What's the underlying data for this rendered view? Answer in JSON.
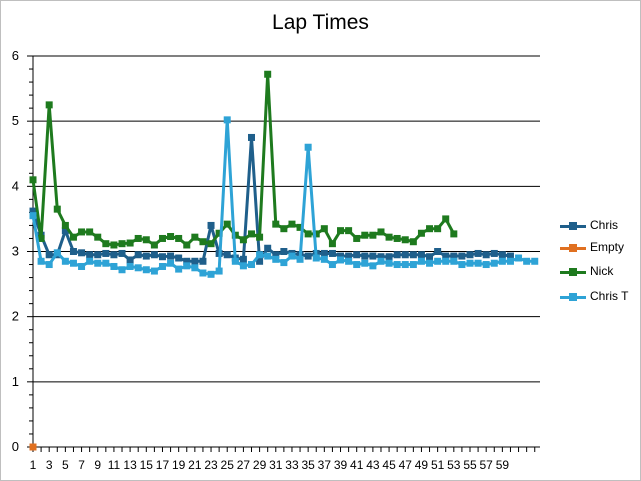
{
  "chart_data": {
    "type": "line",
    "title": "Lap Times",
    "xlabel": "",
    "ylabel": "",
    "ylim": [
      0,
      6
    ],
    "y_ticks": [
      "0",
      "1",
      "2",
      "3",
      "4",
      "5",
      "6"
    ],
    "x_tick_labels": [
      "1",
      "3",
      "5",
      "7",
      "9",
      "11",
      "13",
      "15",
      "17",
      "19",
      "21",
      "23",
      "25",
      "27",
      "29",
      "31",
      "33",
      "35",
      "37",
      "39",
      "41",
      "43",
      "45",
      "47",
      "49",
      "51",
      "53",
      "55",
      "57",
      "59"
    ],
    "x_count": 63,
    "grid": "horizontal",
    "legend_position": "right",
    "series": [
      {
        "name": "Chris",
        "color": "#1f5f8b",
        "marker": "square",
        "values": [
          3.62,
          3.25,
          2.95,
          2.95,
          3.32,
          3.0,
          2.98,
          2.95,
          2.95,
          2.97,
          2.95,
          2.97,
          2.87,
          2.95,
          2.93,
          2.95,
          2.92,
          2.93,
          2.9,
          2.85,
          2.85,
          2.85,
          3.4,
          2.97,
          2.95,
          2.9,
          2.88,
          4.75,
          2.85,
          3.05,
          2.95,
          3.0,
          2.97,
          2.95,
          2.93,
          2.97,
          2.97,
          2.97,
          2.93,
          2.93,
          2.95,
          2.93,
          2.93,
          2.92,
          2.92,
          2.95,
          2.95,
          2.95,
          2.95,
          2.92,
          3.0,
          2.93,
          2.93,
          2.93,
          2.95,
          2.97,
          2.95,
          2.97,
          2.95,
          2.93
        ]
      },
      {
        "name": "Empty",
        "color": "#e07020",
        "marker": "square",
        "values": [
          0
        ]
      },
      {
        "name": "Nick",
        "color": "#1e7a1e",
        "marker": "square",
        "values": [
          4.1,
          3.2,
          5.25,
          3.65,
          3.4,
          3.22,
          3.3,
          3.3,
          3.22,
          3.12,
          3.1,
          3.12,
          3.13,
          3.2,
          3.18,
          3.1,
          3.2,
          3.23,
          3.2,
          3.1,
          3.22,
          3.15,
          3.12,
          3.28,
          3.42,
          3.25,
          3.18,
          3.27,
          3.22,
          5.72,
          3.42,
          3.35,
          3.42,
          3.37,
          3.27,
          3.27,
          3.35,
          3.12,
          3.32,
          3.32,
          3.2,
          3.25,
          3.25,
          3.3,
          3.22,
          3.2,
          3.18,
          3.15,
          3.28,
          3.35,
          3.35,
          3.5,
          3.27
        ]
      },
      {
        "name": "Chris T",
        "color": "#2ea3d6",
        "marker": "square",
        "values": [
          3.55,
          2.85,
          2.8,
          2.98,
          2.85,
          2.82,
          2.77,
          2.85,
          2.82,
          2.82,
          2.77,
          2.72,
          2.77,
          2.75,
          2.72,
          2.7,
          2.77,
          2.82,
          2.73,
          2.78,
          2.75,
          2.67,
          2.65,
          2.7,
          5.02,
          2.85,
          2.78,
          2.8,
          2.95,
          2.93,
          2.88,
          2.83,
          2.93,
          2.88,
          4.6,
          2.9,
          2.88,
          2.8,
          2.87,
          2.85,
          2.8,
          2.82,
          2.78,
          2.85,
          2.82,
          2.8,
          2.8,
          2.8,
          2.85,
          2.82,
          2.85,
          2.85,
          2.85,
          2.8,
          2.82,
          2.82,
          2.8,
          2.82,
          2.85,
          2.85,
          2.9,
          2.85,
          2.85
        ]
      }
    ]
  }
}
